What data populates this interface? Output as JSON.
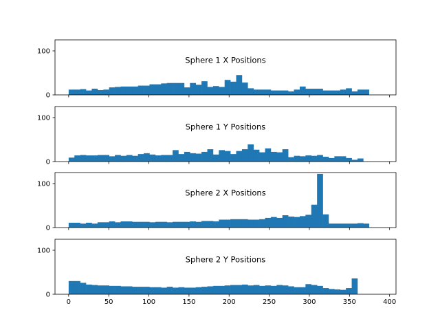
{
  "chart_data": [
    {
      "type": "bar",
      "title": "Sphere 1 X Positions",
      "bin_width": 7.2,
      "x_start": 0,
      "xlim": [
        -17,
        408
      ],
      "ylim": [
        0,
        125
      ],
      "yticks": [
        0,
        100
      ],
      "xticks": [
        0,
        50,
        100,
        150,
        200,
        250,
        300,
        350,
        400
      ],
      "show_x_tick_labels": false,
      "grid": false,
      "values": [
        12,
        12,
        13,
        10,
        14,
        11,
        12,
        17,
        18,
        19,
        19,
        19,
        21,
        21,
        24,
        24,
        26,
        27,
        27,
        27,
        17,
        27,
        23,
        31,
        18,
        20,
        18,
        34,
        30,
        45,
        28,
        15,
        12,
        12,
        12,
        10,
        10,
        10,
        8,
        12,
        19,
        14,
        14,
        14,
        10,
        10,
        10,
        12,
        15,
        8,
        12,
        12
      ]
    },
    {
      "type": "bar",
      "title": "Sphere 1 Y Positions",
      "bin_width": 7.2,
      "x_start": 0,
      "xlim": [
        -17,
        408
      ],
      "ylim": [
        0,
        125
      ],
      "yticks": [
        0,
        100
      ],
      "xticks": [
        0,
        50,
        100,
        150,
        200,
        250,
        300,
        350,
        400
      ],
      "show_x_tick_labels": false,
      "grid": false,
      "values": [
        9,
        14,
        15,
        14,
        14,
        15,
        15,
        12,
        15,
        13,
        15,
        13,
        17,
        19,
        16,
        14,
        15,
        15,
        26,
        17,
        22,
        19,
        18,
        22,
        28,
        16,
        26,
        24,
        17,
        24,
        28,
        39,
        27,
        21,
        30,
        22,
        21,
        28,
        10,
        13,
        12,
        14,
        13,
        15,
        11,
        8,
        12,
        12,
        8,
        4,
        7
      ]
    },
    {
      "type": "bar",
      "title": "Sphere 2 X Positions",
      "bin_width": 7.2,
      "x_start": 0,
      "xlim": [
        -17,
        408
      ],
      "ylim": [
        0,
        125
      ],
      "yticks": [
        0,
        100
      ],
      "xticks": [
        0,
        50,
        100,
        150,
        200,
        250,
        300,
        350,
        400
      ],
      "show_x_tick_labels": false,
      "grid": false,
      "values": [
        11,
        11,
        9,
        11,
        9,
        12,
        12,
        14,
        12,
        14,
        14,
        13,
        13,
        13,
        12,
        13,
        13,
        12,
        13,
        13,
        13,
        14,
        13,
        15,
        15,
        14,
        18,
        18,
        19,
        19,
        19,
        18,
        18,
        19,
        22,
        24,
        22,
        28,
        25,
        24,
        26,
        29,
        52,
        122,
        30,
        9,
        9,
        9,
        9,
        9,
        10,
        9
      ]
    },
    {
      "type": "bar",
      "title": "Sphere 2 Y Positions",
      "bin_width": 7.2,
      "x_start": 0,
      "xlim": [
        -17,
        408
      ],
      "ylim": [
        0,
        125
      ],
      "yticks": [
        0,
        100
      ],
      "xticks": [
        0,
        50,
        100,
        150,
        200,
        250,
        300,
        350,
        400
      ],
      "xtick_labels": [
        "0",
        "50",
        "100",
        "150",
        "200",
        "250",
        "300",
        "350",
        "400"
      ],
      "show_x_tick_labels": true,
      "grid": false,
      "values": [
        30,
        30,
        26,
        22,
        21,
        20,
        20,
        19,
        19,
        18,
        18,
        17,
        17,
        17,
        16,
        16,
        15,
        17,
        15,
        16,
        15,
        15,
        16,
        17,
        18,
        19,
        19,
        20,
        21,
        21,
        22,
        20,
        21,
        19,
        20,
        19,
        21,
        20,
        18,
        16,
        16,
        23,
        21,
        19,
        14,
        12,
        11,
        10,
        14,
        36
      ]
    }
  ],
  "style": {
    "bar_color": "#1f77b4",
    "background": "#ffffff"
  }
}
